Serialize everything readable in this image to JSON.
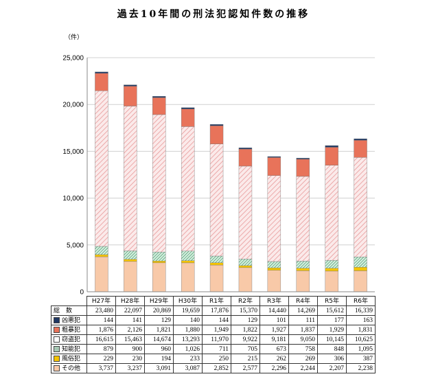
{
  "title": "過去10年間の刑法犯認知件数の推移",
  "chart_data": {
    "type": "bar",
    "stacked": true,
    "unit_label": "（件）",
    "ylim": [
      0,
      25000
    ],
    "yticks": [
      "0",
      "5,000",
      "10,000",
      "15,000",
      "20,000",
      "25,000"
    ],
    "ytick_values": [
      0,
      5000,
      10000,
      15000,
      20000,
      25000
    ],
    "categories": [
      "H27年",
      "H28年",
      "H29年",
      "H30年",
      "R1年",
      "R2年",
      "R3年",
      "R4年",
      "R5年",
      "R6年"
    ],
    "totals_label": "総　数",
    "totals": [
      23480,
      22097,
      20869,
      19659,
      17876,
      15370,
      14440,
      14269,
      15612,
      16339
    ],
    "totals_text": [
      "23,480",
      "22,097",
      "20,869",
      "19,659",
      "17,876",
      "15,370",
      "14,440",
      "14,269",
      "15,612",
      "16,339"
    ],
    "series": [
      {
        "name": "凶悪犯",
        "color": "#1f3864",
        "pattern": "solid",
        "values": [
          144,
          141,
          129,
          140,
          144,
          129,
          101,
          111,
          177,
          163
        ],
        "text": [
          "144",
          "141",
          "129",
          "140",
          "144",
          "129",
          "101",
          "111",
          "177",
          "163"
        ]
      },
      {
        "name": "粗暴犯",
        "color": "#e8735a",
        "pattern": "solid",
        "values": [
          1876,
          2126,
          1821,
          1880,
          1949,
          1822,
          1927,
          1837,
          1929,
          1831
        ],
        "text": [
          "1,876",
          "2,126",
          "1,821",
          "1,880",
          "1,949",
          "1,822",
          "1,927",
          "1,837",
          "1,929",
          "1,831"
        ]
      },
      {
        "name": "窃盗犯",
        "color": "#e89a9a",
        "pattern": "hatch",
        "values": [
          16615,
          15463,
          14674,
          13293,
          11970,
          9922,
          9181,
          9050,
          10145,
          10625
        ],
        "text": [
          "16,615",
          "15,463",
          "14,674",
          "13,293",
          "11,970",
          "9,922",
          "9,181",
          "9,050",
          "10,145",
          "10,625"
        ]
      },
      {
        "name": "知能犯",
        "color": "#2e8b57",
        "pattern": "green-hatch",
        "values": [
          879,
          900,
          960,
          1026,
          711,
          705,
          673,
          758,
          848,
          1095
        ],
        "text": [
          "879",
          "900",
          "960",
          "1,026",
          "711",
          "705",
          "673",
          "758",
          "848",
          "1,095"
        ]
      },
      {
        "name": "風俗犯",
        "color": "#f5c400",
        "pattern": "solid",
        "values": [
          229,
          230,
          194,
          233,
          250,
          215,
          262,
          269,
          306,
          387
        ],
        "text": [
          "229",
          "230",
          "194",
          "233",
          "250",
          "215",
          "262",
          "269",
          "306",
          "387"
        ]
      },
      {
        "name": "その他",
        "color": "#f8c9a8",
        "pattern": "solid",
        "values": [
          3737,
          3237,
          3091,
          3087,
          2852,
          2577,
          2296,
          2244,
          2207,
          2238
        ],
        "text": [
          "3,737",
          "3,237",
          "3,091",
          "3,087",
          "2,852",
          "2,577",
          "2,296",
          "2,244",
          "2,207",
          "2,238"
        ]
      }
    ]
  }
}
